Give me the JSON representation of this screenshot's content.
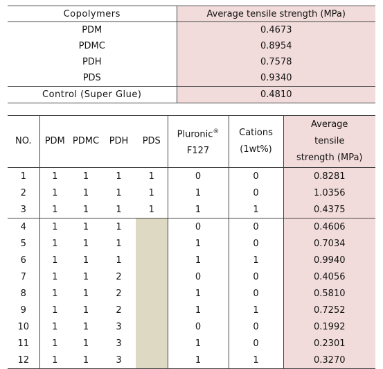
{
  "table1": {
    "header": {
      "copolymers": "Copolymers",
      "strength": "Average tensile strength (MPa)"
    },
    "rows": [
      {
        "name": "PDM",
        "value": "0.4673"
      },
      {
        "name": "PDMC",
        "value": "0.8954"
      },
      {
        "name": "PDH",
        "value": "0.7578"
      },
      {
        "name": "PDS",
        "value": "0.9340"
      }
    ],
    "control": {
      "name": "Control (Super Glue)",
      "value": "0.4810"
    }
  },
  "table2": {
    "header": {
      "no": "NO.",
      "pdm": "PDM",
      "pdmc": "PDMC",
      "pdh": "PDH",
      "pds": "PDS",
      "pluronic_line1": "Pluronic",
      "pluronic_sup": "®",
      "pluronic_line2": "F127",
      "cations_line1": "Cations",
      "cations_line2": "(1wt%)",
      "avg_line1": "Average",
      "avg_line2": "tensile",
      "avg_line3": "strength (MPa)"
    },
    "rows": [
      {
        "no": "1",
        "pdm": "1",
        "pdmc": "1",
        "pdh": "1",
        "pds": "1",
        "pluronic": "0",
        "cations": "0",
        "strength": "0.8281"
      },
      {
        "no": "2",
        "pdm": "1",
        "pdmc": "1",
        "pdh": "1",
        "pds": "1",
        "pluronic": "1",
        "cations": "0",
        "strength": "1.0356"
      },
      {
        "no": "3",
        "pdm": "1",
        "pdmc": "1",
        "pdh": "1",
        "pds": "1",
        "pluronic": "1",
        "cations": "1",
        "strength": "0.4375"
      },
      {
        "no": "4",
        "pdm": "1",
        "pdmc": "1",
        "pdh": "1",
        "pds": "",
        "pluronic": "0",
        "cations": "0",
        "strength": "0.4606"
      },
      {
        "no": "5",
        "pdm": "1",
        "pdmc": "1",
        "pdh": "1",
        "pds": "",
        "pluronic": "1",
        "cations": "0",
        "strength": "0.7034"
      },
      {
        "no": "6",
        "pdm": "1",
        "pdmc": "1",
        "pdh": "1",
        "pds": "",
        "pluronic": "1",
        "cations": "1",
        "strength": "0.9940"
      },
      {
        "no": "7",
        "pdm": "1",
        "pdmc": "1",
        "pdh": "2",
        "pds": "",
        "pluronic": "0",
        "cations": "0",
        "strength": "0.4056"
      },
      {
        "no": "8",
        "pdm": "1",
        "pdmc": "1",
        "pdh": "2",
        "pds": "",
        "pluronic": "1",
        "cations": "0",
        "strength": "0.5810"
      },
      {
        "no": "9",
        "pdm": "1",
        "pdmc": "1",
        "pdh": "2",
        "pds": "",
        "pluronic": "1",
        "cations": "1",
        "strength": "0.7252"
      },
      {
        "no": "10",
        "pdm": "1",
        "pdmc": "1",
        "pdh": "3",
        "pds": "",
        "pluronic": "0",
        "cations": "0",
        "strength": "0.1992"
      },
      {
        "no": "11",
        "pdm": "1",
        "pdmc": "1",
        "pdh": "3",
        "pds": "",
        "pluronic": "1",
        "cations": "0",
        "strength": "0.2301"
      },
      {
        "no": "12",
        "pdm": "1",
        "pdmc": "1",
        "pdh": "3",
        "pds": "",
        "pluronic": "1",
        "cations": "1",
        "strength": "0.3270"
      }
    ]
  },
  "colors": {
    "highlight_pink": "#f2dcdb",
    "empty_cell_tan": "#ddd9c3"
  }
}
